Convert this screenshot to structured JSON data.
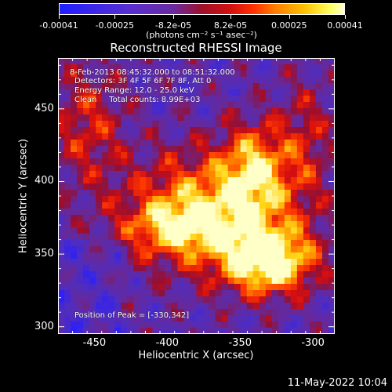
{
  "chart_data": {
    "type": "heatmap",
    "title": "Reconstructed RHESSI Image",
    "xlabel": "Heliocentric X (arcsec)",
    "ylabel": "Heliocentric Y (arcsec)",
    "xlim": [
      -475,
      -285
    ],
    "ylim": [
      295,
      485
    ],
    "x_ticks": [
      "-450",
      "-400",
      "-350",
      "-300"
    ],
    "x_tick_values": [
      -450,
      -400,
      -350,
      -300
    ],
    "y_ticks": [
      "300",
      "350",
      "400",
      "450"
    ],
    "y_tick_values": [
      300,
      350,
      400,
      450
    ],
    "colorbar": {
      "min": -0.00041,
      "max": 0.00041,
      "tick_labels": [
        "-0.00041",
        "-0.00025",
        "-8.2e-05",
        "8.2e-05",
        "0.00025",
        "0.00041"
      ],
      "tick_values": [
        -0.00041,
        -0.00025,
        -8.2e-05,
        8.2e-05,
        0.00025,
        0.00041
      ],
      "units": "(photons cm⁻² s⁻¹ asec⁻²)"
    },
    "annotations": {
      "time_range": "8-Feb-2013 08:45:32.000 to 08:51:32.000",
      "detectors": "Detectors: 3F 4F 5F 6F 7F 8F, Att 0",
      "energy_range": "Energy Range: 12.0 - 25.0 keV",
      "method_counts": "Clean     Total counts: 8.99E+03",
      "peak_position": "Position of Peak = [-330,342]"
    },
    "peak": {
      "x": -330,
      "y": 342
    }
  },
  "timestamp": "11-May-2022 10:04"
}
